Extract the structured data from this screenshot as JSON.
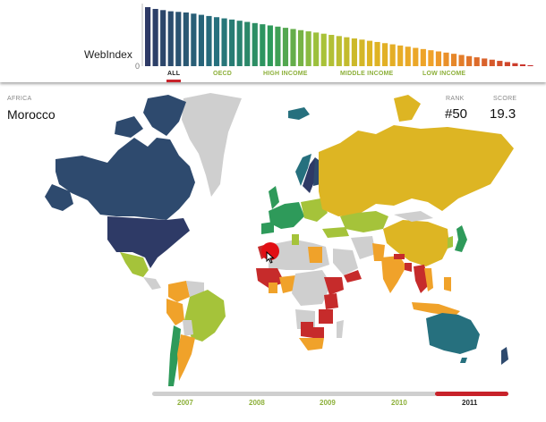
{
  "header": {
    "index_label": "WebIndex",
    "axis_zero": "0",
    "filters": [
      "ALL",
      "OECD",
      "HIGH INCOME",
      "MIDDLE INCOME",
      "LOW INCOME"
    ],
    "active_filter": "ALL"
  },
  "selection": {
    "region": "AFRICA",
    "country": "Morocco",
    "rank_label": "RANK",
    "rank_value": "#50",
    "score_label": "SCORE",
    "score_value": "19.3"
  },
  "timeline": {
    "years": [
      "2007",
      "2008",
      "2009",
      "2010",
      "2011"
    ],
    "active_year": "2011"
  },
  "colors": {
    "accent_red": "#c8222a",
    "filter_green": "#8db03a",
    "rank_dark": "#2e3a66",
    "rank_teal": "#26707e",
    "rank_green": "#2e9a5a",
    "rank_lime": "#a5c33a",
    "rank_yellow": "#ddb523",
    "rank_orange": "#f0a22a",
    "rank_red": "#c62b2b",
    "no_data": "#cfcfcf"
  },
  "chart_data": {
    "type": "bar",
    "title": "",
    "ylabel": "WebIndex",
    "sorted": "descending",
    "values": [
      100,
      97,
      95,
      93,
      92,
      91,
      89,
      87,
      85,
      83,
      81,
      79,
      77,
      75,
      73,
      71,
      69,
      67,
      65,
      63,
      61,
      59,
      57,
      55,
      53,
      51,
      49,
      47,
      45,
      43,
      41,
      39,
      37,
      35,
      33,
      31,
      29,
      27,
      25,
      23,
      21,
      19,
      17,
      15,
      13,
      11,
      9,
      7,
      5,
      3,
      1
    ]
  }
}
